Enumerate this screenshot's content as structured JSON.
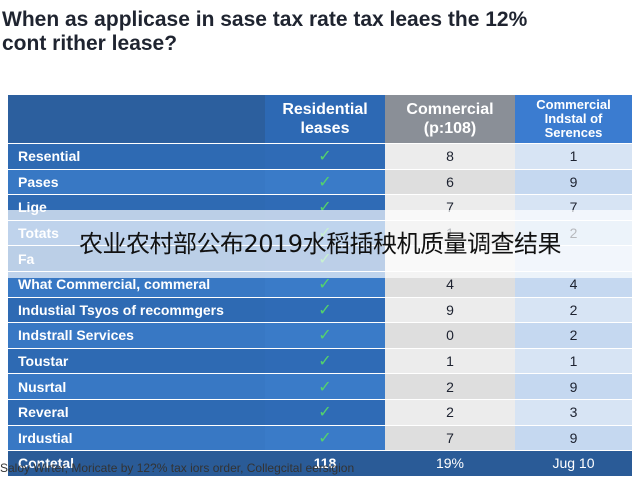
{
  "title": {
    "line1": "When as applicase in sase tax rate tax leaes the 12%",
    "line2": "cont rither lease?"
  },
  "table": {
    "headers": [
      "",
      "Residential leases",
      "Comnercial (p:108)",
      "Commercial Indstal of Serences"
    ],
    "check_glyph": "✓",
    "rows": [
      {
        "label": "Resential",
        "residential": true,
        "commercial": "8",
        "industrial": "1"
      },
      {
        "label": "Pases",
        "residential": true,
        "commercial": "6",
        "industrial": "9"
      },
      {
        "label": "Lige",
        "residential": true,
        "commercial": "7",
        "industrial": "7"
      },
      {
        "label": "Totats",
        "residential": true,
        "commercial": "1",
        "industrial": "2"
      },
      {
        "label": "Fa",
        "residential": true,
        "commercial": "",
        "industrial": ""
      },
      {
        "label": "What Commercial, commeral",
        "residential": true,
        "commercial": "4",
        "industrial": "4"
      },
      {
        "label": "Industial Tsyos of recommgers",
        "residential": true,
        "commercial": "9",
        "industrial": "2"
      },
      {
        "label": "Indstrall Services",
        "residential": true,
        "commercial": "0",
        "industrial": "2"
      },
      {
        "label": "Toustar",
        "residential": true,
        "commercial": "1",
        "industrial": "1"
      },
      {
        "label": "Nusrtal",
        "residential": true,
        "commercial": "2",
        "industrial": "9"
      },
      {
        "label": "Reveral",
        "residential": true,
        "commercial": "2",
        "industrial": "3"
      },
      {
        "label": "Irdustial",
        "residential": true,
        "commercial": "7",
        "industrial": "9"
      }
    ],
    "total": {
      "label": "Contetal",
      "residential": "118",
      "commercial": "19%",
      "industrial": "Jug 10"
    }
  },
  "caption": "Saloy Wirter, Moricate by 12?% tax iors order, Collegcital eersigion",
  "banner": "农业农村部公布2019水稻插秧机质量调查结果",
  "colors": {
    "header_navy": "#2c5f9e",
    "residential_blue": "#2d69b4",
    "commercial_gray": "#8a8f97",
    "industrial_blue": "#3b7cd0",
    "check_green": "#54d36b"
  }
}
